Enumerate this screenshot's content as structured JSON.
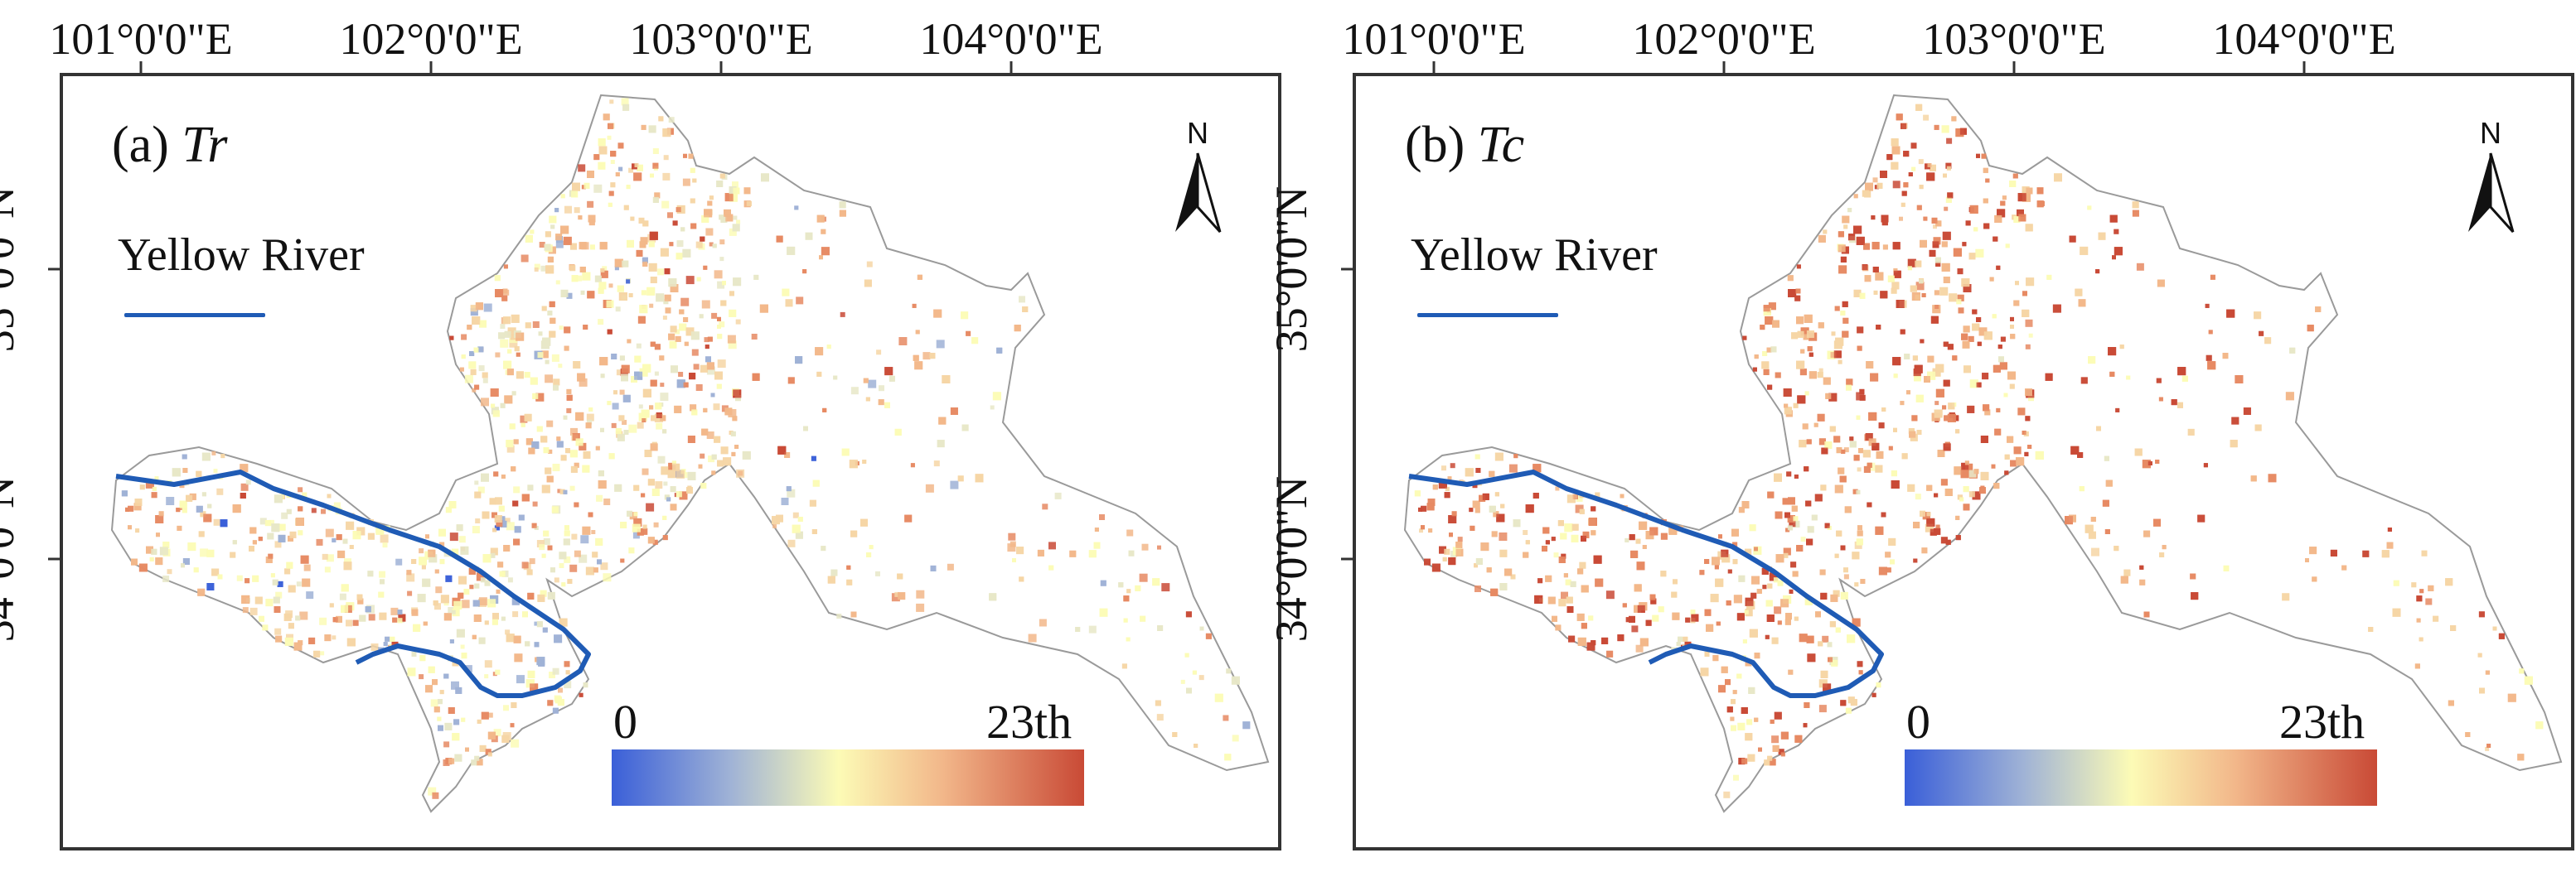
{
  "colors": {
    "river": "#1f5bb5",
    "ramp_low": "#3a5fd8",
    "ramp_mid": "#fcfbb6",
    "ramp_high": "#c94a36",
    "frame": "#333333"
  },
  "longitude_ticks": [
    "101°0'0\"E",
    "102°0'0\"E",
    "103°0'0\"E",
    "104°0'0\"E"
  ],
  "latitude_ticks": [
    "35°0'0\"N",
    "34°0'0\"N"
  ],
  "panels": [
    {
      "label_prefix": "(a)",
      "label_var": "Tr",
      "legend_river": "Yellow River",
      "north": "N",
      "colorbar_min": "0",
      "colorbar_max": "23th",
      "intensity": 0.42
    },
    {
      "label_prefix": "(b)",
      "label_var": "Tc",
      "legend_river": "Yellow River",
      "north": "N",
      "colorbar_min": "0",
      "colorbar_max": "23th",
      "intensity": 0.78
    }
  ]
}
